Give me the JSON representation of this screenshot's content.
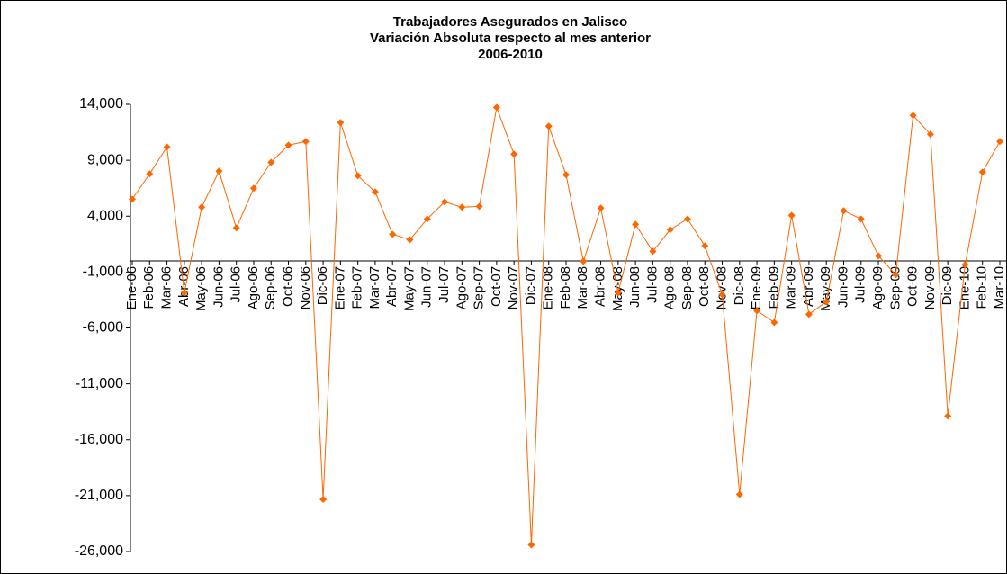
{
  "chart_data": {
    "type": "line",
    "title": [
      "Trabajadores Asegurados en Jalisco",
      "Variación Absoluta respecto al mes anterior",
      "2006-2010"
    ],
    "categories": [
      "Ene-06",
      "Feb-06",
      "Mar-06",
      "Abr-06",
      "May-06",
      "Jun-06",
      "Jul-06",
      "Ago-06",
      "Sep-06",
      "Oct-06",
      "Nov-06",
      "Dic-06",
      "Ene-07",
      "Feb-07",
      "Mar-07",
      "Abr-07",
      "May-07",
      "Jun-07",
      "Jul-07",
      "Ago-07",
      "Sep-07",
      "Oct-07",
      "Nov-07",
      "Dic-07",
      "Ene-08",
      "Feb-08",
      "Mar-08",
      "Abr-08",
      "May-08",
      "Jun-08",
      "Jul-08",
      "Ago-08",
      "Sep-08",
      "Oct-08",
      "Nov-08",
      "Dic-08",
      "Ene-09",
      "Feb-09",
      "Mar-09",
      "Abr-09",
      "May-09",
      "Jun-09",
      "Jul-09",
      "Ago-09",
      "Sep-09",
      "Oct-09",
      "Nov-09",
      "Dic-09",
      "Ene-10",
      "Feb-10",
      "Mar-10"
    ],
    "series": [
      {
        "color": "#ff6600",
        "values": [
          5520,
          7780,
          10190,
          -2850,
          4800,
          8020,
          2950,
          6490,
          8820,
          10350,
          10680,
          -21330,
          12370,
          7620,
          6170,
          2380,
          1900,
          3750,
          5280,
          4800,
          4880,
          13730,
          9550,
          -25400,
          12050,
          7700,
          -30,
          4720,
          -2850,
          3270,
          850,
          2790,
          3750,
          1340,
          -3010,
          -20890,
          -4460,
          -5510,
          4070,
          -4780,
          -3660,
          4480,
          3750,
          450,
          -1240,
          13010,
          11320,
          -13880,
          -350,
          7940,
          10680
        ]
      }
    ],
    "ylim": [
      -26000,
      14000
    ],
    "yticks": [
      {
        "value": -26000,
        "label": "-26,000"
      },
      {
        "value": -21000,
        "label": "-21,000"
      },
      {
        "value": -16000,
        "label": "-16,000"
      },
      {
        "value": -11000,
        "label": "-11,000"
      },
      {
        "value": -6000,
        "label": "-6,000"
      },
      {
        "value": -1000,
        "label": "-1,000"
      },
      {
        "value": 4000,
        "label": "4,000"
      },
      {
        "value": 9000,
        "label": "9,000"
      },
      {
        "value": 14000,
        "label": "14,000"
      }
    ],
    "grid": false
  }
}
